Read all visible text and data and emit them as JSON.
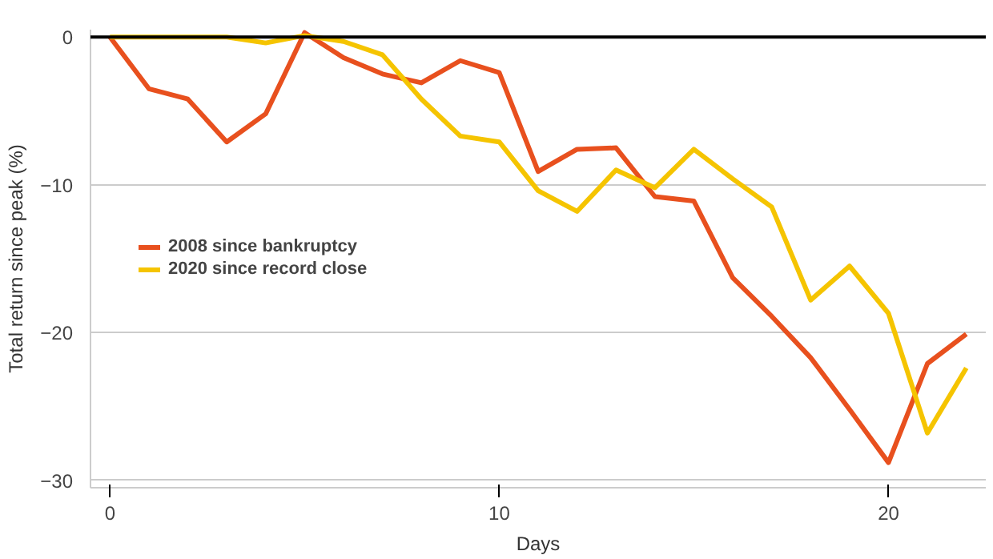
{
  "chart_data": {
    "type": "line",
    "xlabel": "Days",
    "ylabel": "Total return since peak (%)",
    "x": [
      0,
      1,
      2,
      3,
      4,
      5,
      6,
      7,
      8,
      9,
      10,
      11,
      12,
      13,
      14,
      15,
      16,
      17,
      18,
      19,
      20,
      21,
      22
    ],
    "series": [
      {
        "name": "2008 since bankruptcy",
        "color": "#e8501e",
        "values": [
          0,
          -3.5,
          -4.2,
          -7.1,
          -5.2,
          0.3,
          -1.4,
          -2.5,
          -3.1,
          -1.6,
          -2.4,
          -9.1,
          -7.6,
          -7.5,
          -10.8,
          -11.1,
          -16.3,
          -18.9,
          -21.7,
          -25.2,
          -28.8,
          -22.1,
          -20.1
        ]
      },
      {
        "name": "2020 since record close",
        "color": "#f5c400",
        "values": [
          0,
          0,
          0,
          0,
          -0.4,
          0.1,
          -0.3,
          -1.2,
          -4.2,
          -6.7,
          -7.1,
          -10.4,
          -11.8,
          -9.0,
          -10.2,
          -7.6,
          -9.6,
          -11.5,
          -17.8,
          -15.5,
          -18.7,
          -26.8,
          -22.4
        ]
      }
    ],
    "xlim": [
      -0.5,
      22.5
    ],
    "ylim": [
      -30.5,
      0.5
    ],
    "xticks": [
      0,
      10,
      20
    ],
    "yticks": [
      0,
      -10,
      -20,
      -30
    ],
    "ref_lines": [
      {
        "axis": "y",
        "value": 0,
        "color": "#000000"
      }
    ],
    "grid": "y",
    "legend": "left",
    "marker": "none",
    "line_style": "solid"
  }
}
